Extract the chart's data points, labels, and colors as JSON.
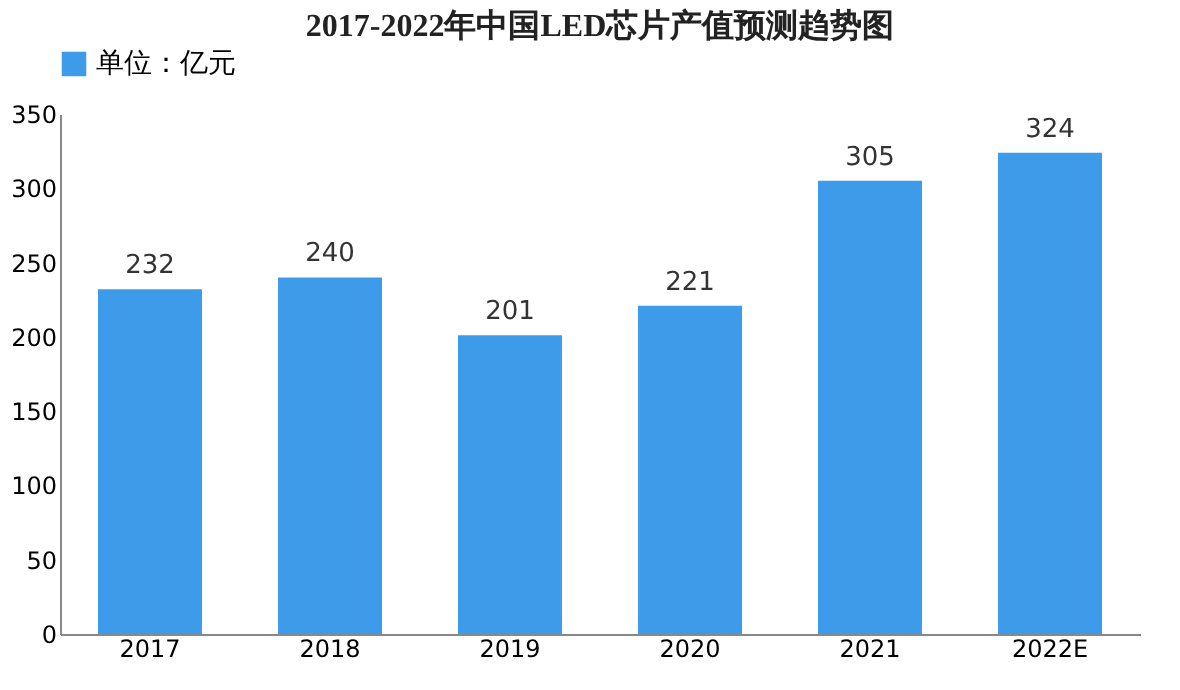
{
  "chart_data": {
    "type": "bar",
    "title": "2017-2022年中国LED芯片产值预测趋势图",
    "categories": [
      "2017",
      "2018",
      "2019",
      "2020",
      "2021",
      "2022E"
    ],
    "series": [
      {
        "name": "单位：亿元",
        "color": "#3d9be9",
        "values": [
          232,
          240,
          201,
          221,
          305,
          324
        ]
      }
    ],
    "ylim": [
      0,
      350
    ],
    "yticks": [
      0,
      50,
      100,
      150,
      200,
      250,
      300,
      350
    ],
    "grid": false,
    "legend": "top",
    "data_labels": true
  }
}
